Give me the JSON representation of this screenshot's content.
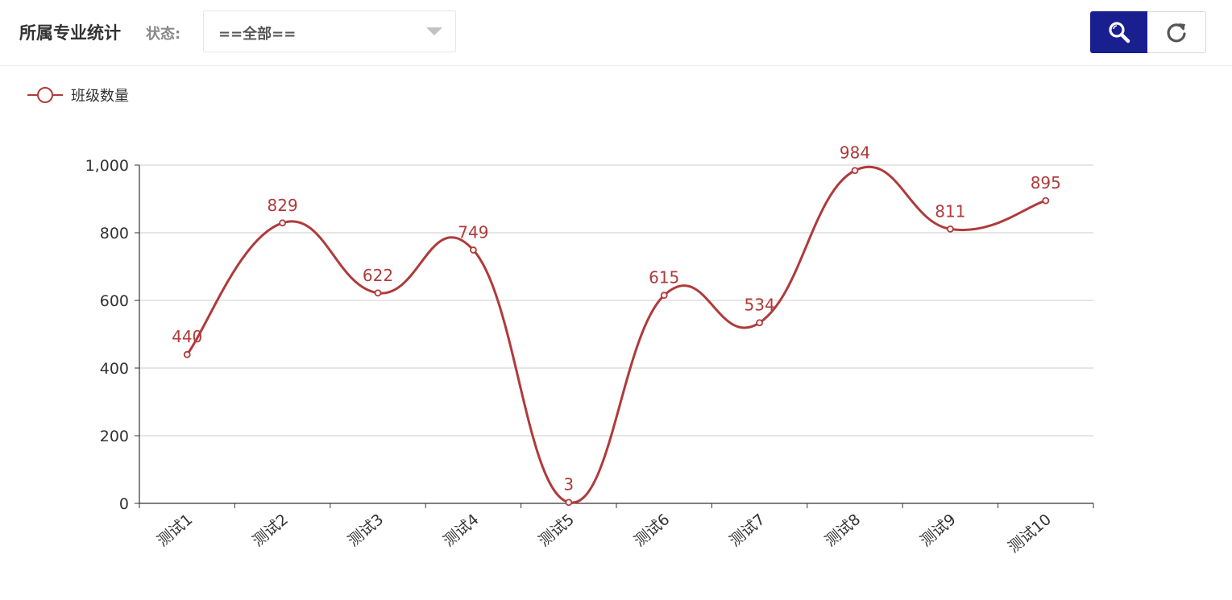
{
  "header": {
    "title": "所属专业统计",
    "status_label": "状态:",
    "status_select": {
      "value": "==全部=="
    },
    "search_button": {
      "icon": "search-icon"
    },
    "refresh_button": {
      "icon": "refresh-icon"
    }
  },
  "chart_data": {
    "type": "line",
    "smooth": true,
    "legend": {
      "position": "top-left",
      "entries": [
        "班级数量"
      ]
    },
    "categories": [
      "测试1",
      "测试2",
      "测试3",
      "测试4",
      "测试5",
      "测试6",
      "测试7",
      "测试8",
      "测试9",
      "测试10"
    ],
    "series": [
      {
        "name": "班级数量",
        "values": [
          440,
          829,
          622,
          749,
          3,
          615,
          534,
          984,
          811,
          895
        ],
        "color": "#b03a3a"
      }
    ],
    "yticks": [
      "0",
      "200",
      "400",
      "600",
      "800",
      "1,000"
    ],
    "ylim": [
      0,
      1000
    ],
    "grid": true
  }
}
